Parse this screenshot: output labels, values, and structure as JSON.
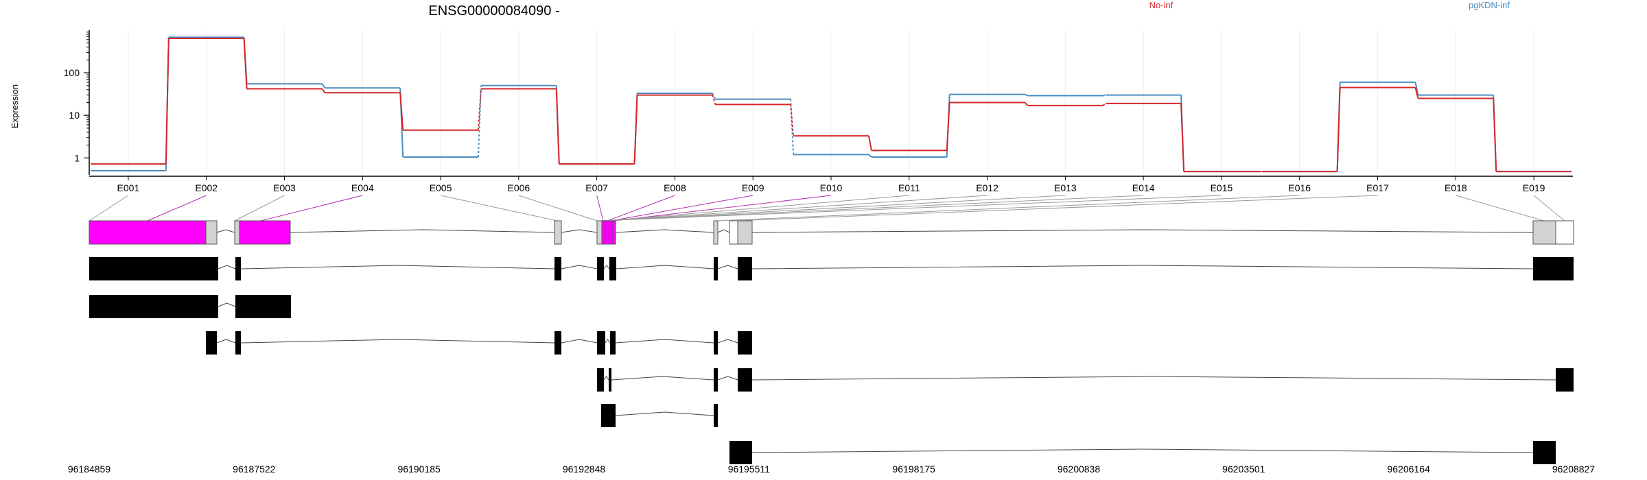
{
  "chart_data": {
    "type": "line",
    "title": "ENSG00000084090 -",
    "ylabel": "Expression",
    "y_scale": "log",
    "y_ticks": [
      "1",
      "10",
      "100"
    ],
    "ylim": [
      0.4,
      1000
    ],
    "legend_position": "top-right",
    "categories": [
      "E001",
      "E002",
      "E003",
      "E004",
      "E005",
      "E006",
      "E007",
      "E008",
      "E009",
      "E010",
      "E011",
      "E012",
      "E013",
      "E014",
      "E015",
      "E016",
      "E017",
      "E018",
      "E019"
    ],
    "series": [
      {
        "name": "No-inf",
        "color": "#d62728",
        "values": [
          0.72,
          640,
          42,
          34,
          4.5,
          42,
          0.72,
          30,
          18,
          3.3,
          1.5,
          20,
          17,
          19,
          0.48,
          0.48,
          45,
          25,
          0.48
        ]
      },
      {
        "name": "pgKDN-inf",
        "color": "#4a8cc2",
        "values": [
          0.5,
          680,
          55,
          44,
          1.05,
          50,
          0.72,
          33,
          24,
          1.2,
          1.05,
          31,
          29,
          30,
          0.48,
          0.48,
          60,
          30,
          0.48
        ]
      }
    ],
    "dotted_segments_after": [
      4,
      7,
      8,
      12,
      14
    ],
    "genome_axis_ticks": [
      "96184859",
      "96187522",
      "96190185",
      "96192848",
      "96195511",
      "96198175",
      "96200838",
      "96203501",
      "96206164",
      "96208827"
    ],
    "colors": {
      "highlight_exon": "#ff00ff",
      "exon_bin": "#d3d3d3",
      "transcript_exon": "#000000",
      "link_gray": "#999999",
      "link_purple": "#b030b0"
    }
  }
}
